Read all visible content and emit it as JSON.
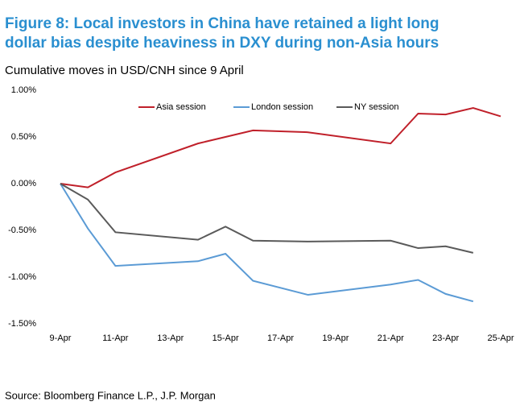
{
  "chart_data": {
    "type": "line",
    "title": "Figure 8: Local investors in China have retained a light long dollar bias despite heaviness in DXY during non-Asia hours",
    "subtitle": "Cumulative moves in USD/CNH since 9 April",
    "source": "Source: Bloomberg Finance L.P., J.P. Morgan",
    "x": [
      9,
      10,
      11,
      14,
      15,
      16,
      18,
      21,
      22,
      23,
      24,
      25
    ],
    "xlim": [
      9,
      25
    ],
    "xticks": [
      {
        "value": 9,
        "label": "9-Apr"
      },
      {
        "value": 11,
        "label": "11-Apr"
      },
      {
        "value": 13,
        "label": "13-Apr"
      },
      {
        "value": 15,
        "label": "15-Apr"
      },
      {
        "value": 17,
        "label": "17-Apr"
      },
      {
        "value": 19,
        "label": "19-Apr"
      },
      {
        "value": 21,
        "label": "21-Apr"
      },
      {
        "value": 23,
        "label": "23-Apr"
      },
      {
        "value": 25,
        "label": "25-Apr"
      }
    ],
    "ylim": [
      -1.5,
      1.0
    ],
    "yticks": [
      {
        "value": -1.5,
        "label": "-1.50%"
      },
      {
        "value": -1.0,
        "label": "-1.00%"
      },
      {
        "value": -0.5,
        "label": "-0.50%"
      },
      {
        "value": 0,
        "label": "0.00%"
      },
      {
        "value": 0.5,
        "label": "0.50%"
      },
      {
        "value": 1.0,
        "label": "1.00%"
      }
    ],
    "legend": "top",
    "series": [
      {
        "name": "Asia session",
        "color": "#c0202a",
        "values": [
          0,
          -0.04,
          0.12,
          0.43,
          0.5,
          0.57,
          0.55,
          0.43,
          0.75,
          0.74,
          0.81,
          0.72
        ]
      },
      {
        "name": "London session",
        "color": "#5b9bd5",
        "values": [
          0,
          -0.48,
          -0.88,
          -0.83,
          -0.75,
          -1.04,
          -1.19,
          -1.08,
          -1.03,
          -1.18,
          -1.26,
          null
        ]
      },
      {
        "name": "NY session",
        "color": "#5a5a5a",
        "values": [
          0,
          -0.17,
          -0.52,
          -0.6,
          -0.46,
          -0.61,
          -0.62,
          -0.61,
          -0.69,
          -0.67,
          -0.74,
          null
        ]
      }
    ]
  }
}
